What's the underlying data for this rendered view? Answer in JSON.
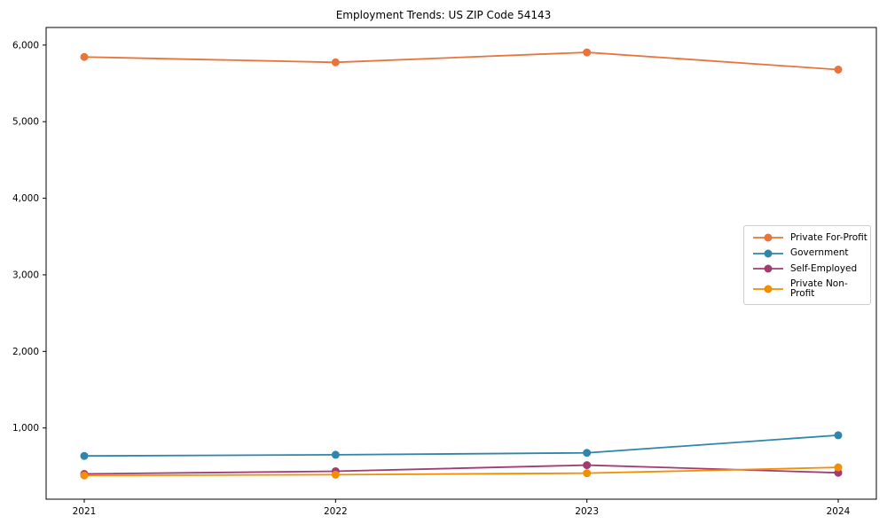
{
  "title": "Employment Trends: US ZIP Code 54143",
  "chart_data": {
    "type": "line",
    "title": "Employment Trends: US ZIP Code 54143",
    "x": [
      2021,
      2022,
      2023,
      2024
    ],
    "xticklabels": [
      "2021",
      "2022",
      "2023",
      "2024"
    ],
    "yticks": [
      1000,
      2000,
      3000,
      4000,
      5000,
      6000
    ],
    "yticklabels": [
      "1,000",
      "2,000",
      "3,000",
      "4,000",
      "5,000",
      "6,000"
    ],
    "ylim": [
      70,
      6230
    ],
    "grid": false,
    "legend_position": "center right",
    "series": [
      {
        "name": "Private For-Profit",
        "color": "#E8743C",
        "values": [
          5845,
          5775,
          5905,
          5680
        ]
      },
      {
        "name": "Government",
        "color": "#2E86AB",
        "values": [
          635,
          650,
          675,
          905
        ]
      },
      {
        "name": "Self-Employed",
        "color": "#A23B72",
        "values": [
          400,
          435,
          515,
          415
        ]
      },
      {
        "name": "Private Non-Profit",
        "color": "#F18F01",
        "values": [
          380,
          390,
          410,
          485
        ]
      }
    ]
  }
}
